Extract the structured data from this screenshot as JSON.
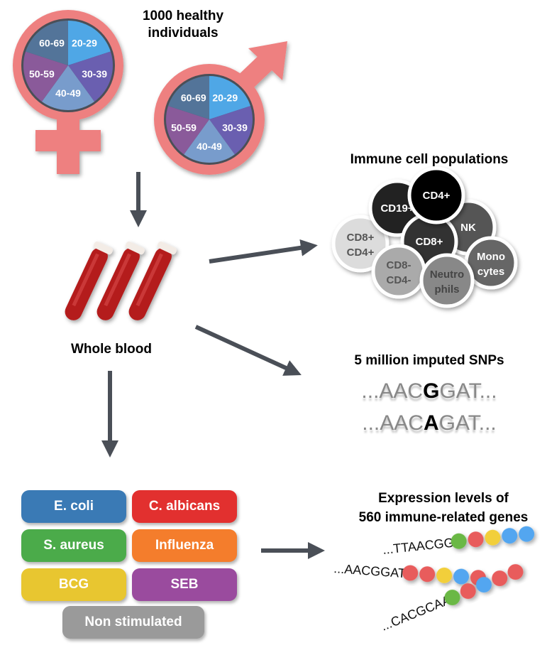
{
  "cohort": {
    "title_line1": "1000 healthy",
    "title_line2": "individuals",
    "age_groups": [
      {
        "label": "20-29",
        "color": "#4fa7e6"
      },
      {
        "label": "30-39",
        "color": "#6a5fb0"
      },
      {
        "label": "40-49",
        "color": "#789ccc"
      },
      {
        "label": "50-59",
        "color": "#8a5a9a"
      },
      {
        "label": "60-69",
        "color": "#537499"
      }
    ],
    "symbol_color": "#ee8080"
  },
  "blood": {
    "label": "Whole blood"
  },
  "immune": {
    "title": "Immune cell populations",
    "cells": [
      {
        "label1": "CD8+",
        "label2": "CD4+",
        "fill": "#dcdcdc",
        "text": "#555"
      },
      {
        "label1": "CD19+",
        "label2": "",
        "fill": "#222",
        "text": "#fff"
      },
      {
        "label1": "NK",
        "label2": "",
        "fill": "#555",
        "text": "#fff"
      },
      {
        "label1": "CD8+",
        "label2": "",
        "fill": "#333",
        "text": "#fff"
      },
      {
        "label1": "CD4+",
        "label2": "",
        "fill": "#000",
        "text": "#fff"
      },
      {
        "label1": "CD8-",
        "label2": "CD4-",
        "fill": "#aaa",
        "text": "#555"
      },
      {
        "label1": "Mono",
        "label2": "cytes",
        "fill": "#666",
        "text": "#fff"
      },
      {
        "label1": "Neutro",
        "label2": "phils",
        "fill": "#888",
        "text": "#444"
      }
    ]
  },
  "snps": {
    "title": "5 million imputed SNPs",
    "row1": {
      "pre": "...AAC",
      "allele": "G",
      "post": "GAT..."
    },
    "row2": {
      "pre": "...AAC",
      "allele": "A",
      "post": "GAT..."
    }
  },
  "expression": {
    "title_line1": "Expression levels of",
    "title_line2": "560 immune-related genes",
    "rows": [
      {
        "seq": "...TTAACGG",
        "dots": [
          "#6ab845",
          "#e85c5c",
          "#f2cf3a",
          "#52a6f0",
          "#52a6f0"
        ]
      },
      {
        "seq": "...AACGGAT",
        "dots": [
          "#e85c5c",
          "#e85c5c",
          "#f2cf3a",
          "#52a6f0",
          "#e85c5c"
        ]
      },
      {
        "seq": "...CACGCAA",
        "dots": [
          "#6ab845",
          "#e85c5c",
          "#52a6f0",
          "#e85c5c",
          "#e85c5c"
        ]
      }
    ]
  },
  "stimuli": [
    {
      "label": "E. coli",
      "color": "#3a7ab5"
    },
    {
      "label": "C. albicans",
      "color": "#e2302f"
    },
    {
      "label": "S. aureus",
      "color": "#4bab4a"
    },
    {
      "label": "Influenza",
      "color": "#f47d2c"
    },
    {
      "label": "BCG",
      "color": "#e8c630"
    },
    {
      "label": "SEB",
      "color": "#9a4b9e"
    },
    {
      "label": "Non stimulated",
      "color": "#9a9a9a"
    }
  ],
  "arrow_color": "#4a4f57"
}
